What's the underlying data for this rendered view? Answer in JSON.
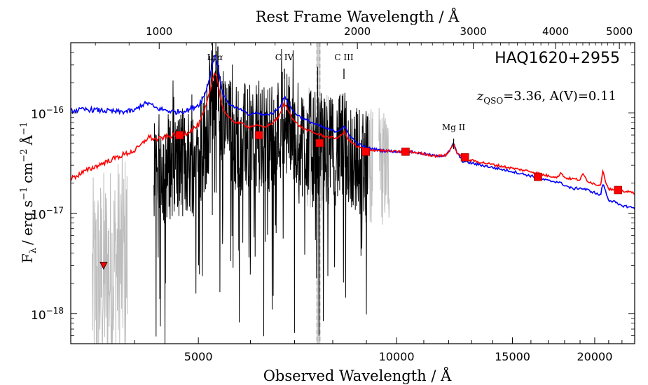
{
  "chart_data": {
    "type": "line",
    "title": "",
    "object_label": "HAQ1620+2955",
    "redshift_label": {
      "z_symbol": "z",
      "z_subscript": "QSO",
      "text": "=3.36, A(V)=0.11"
    },
    "xlabel_bottom": "Observed Wavelength / Å",
    "xlabel_top": "Rest Frame Wavelength / Å",
    "ylabel": {
      "F": "F",
      "F_sub": "λ",
      "units": "/ erg s",
      "s_exp": "−1",
      "cm": "cm",
      "cm_exp": "−2",
      "A": "Å",
      "A_exp": "−1"
    },
    "x_scale": "log",
    "xlim": [
      3200,
      23000
    ],
    "y_scale": "log",
    "ylim": [
      5e-19,
      5e-16
    ],
    "z": 3.36,
    "x_ticks_bottom": [
      {
        "value": 5000,
        "label": "5000"
      },
      {
        "value": 10000,
        "label": "10000"
      },
      {
        "value": 15000,
        "label": "15000"
      },
      {
        "value": 20000,
        "label": "20000"
      }
    ],
    "x_ticks_top_rest": [
      {
        "value": 1000,
        "label": "1000"
      },
      {
        "value": 2000,
        "label": "2000"
      },
      {
        "value": 3000,
        "label": "3000"
      },
      {
        "value": 4000,
        "label": "4000"
      },
      {
        "value": 5000,
        "label": "5000"
      }
    ],
    "y_ticks": [
      {
        "value": 1e-16,
        "base": "10",
        "exp": "−16"
      },
      {
        "value": 1e-17,
        "base": "10",
        "exp": "−17"
      },
      {
        "value": 1e-18,
        "base": "10",
        "exp": "−18"
      }
    ],
    "emission_lines": [
      {
        "name": "Lyα",
        "label_main": "Ly",
        "label_greek": "α",
        "obs_wavelength": 5300,
        "tick": false
      },
      {
        "name": "C IV",
        "label_main": "C IV",
        "label_greek": "",
        "obs_wavelength": 6755,
        "tick": true
      },
      {
        "name": "C III",
        "label_main": "C III",
        "label_greek": "",
        "obs_wavelength": 8320,
        "tick": true
      },
      {
        "name": "Mg II",
        "label_main": "Mg II",
        "label_greek": "",
        "obs_wavelength": 12210,
        "tick": true
      }
    ],
    "shaded_band": {
      "x_from": 7560,
      "x_to": 7660,
      "color": "#cfcfcf"
    },
    "dashed_lines_x": [
      7570,
      7650
    ],
    "photometry_points": {
      "marker": "square",
      "color": "#ff0000",
      "x": [
        4680,
        6180,
        7640,
        8980,
        10320,
        12700,
        16400,
        21700
      ],
      "y": [
        6e-17,
        6e-17,
        5e-17,
        4.1e-17,
        4.1e-17,
        3.6e-17,
        2.3e-17,
        1.7e-17
      ]
    },
    "upper_limit": {
      "marker": "triangle-down",
      "color": "#ff0000",
      "x": 3590,
      "y": 3e-18
    },
    "series": [
      {
        "color": "#0000ff",
        "kind": "model",
        "x": [
          3200,
          3400,
          3600,
          3800,
          4000,
          4100,
          4200,
          4300,
          4400,
          4600,
          4800,
          5000,
          5100,
          5200,
          5250,
          5300,
          5350,
          5400,
          5450,
          5550,
          5700,
          5850,
          5950,
          6100,
          6300,
          6500,
          6650,
          6750,
          6850,
          7000,
          7200,
          7500,
          7800,
          8100,
          8250,
          8320,
          8450,
          8700,
          9000,
          9500,
          10000,
          10500,
          11000,
          11500,
          11900,
          12100,
          12210,
          12350,
          12600,
          13000,
          14000,
          15000,
          16000,
          17000,
          17600,
          18000,
          18500,
          19000,
          19500,
          20000,
          20400,
          20600,
          20800,
          21000,
          21400,
          21800,
          22200,
          22600,
          23000
        ],
        "y": [
          1.05e-16,
          1.08e-16,
          1.05e-16,
          1.02e-16,
          1.05e-16,
          1.2e-16,
          1.25e-16,
          1.12e-16,
          1.08e-16,
          1.02e-16,
          1.05e-16,
          1.2e-16,
          1.45e-16,
          2.2e-16,
          3e-16,
          3.9e-16,
          3e-16,
          2e-16,
          1.55e-16,
          1.25e-16,
          1.12e-16,
          1.05e-16,
          9.5e-17,
          1e-16,
          9.5e-17,
          1e-16,
          1.15e-16,
          1.45e-16,
          1.25e-16,
          1e-16,
          8.8e-17,
          7.8e-17,
          7e-17,
          6.5e-17,
          7e-17,
          7.4e-17,
          6.2e-17,
          5e-17,
          4.5e-17,
          4.2e-17,
          4.1e-17,
          4.1e-17,
          3.9e-17,
          3.7e-17,
          3.8e-17,
          4.4e-17,
          5e-17,
          4e-17,
          3.3e-17,
          3.15e-17,
          2.85e-17,
          2.6e-17,
          2.35e-17,
          2.1e-17,
          2.05e-17,
          1.9e-17,
          1.75e-17,
          1.78e-17,
          1.7e-17,
          1.6e-17,
          1.5e-17,
          2e-17,
          1.6e-17,
          1.35e-17,
          1.3e-17,
          1.2e-17,
          1.18e-17,
          1.15e-17,
          1.12e-17
        ]
      },
      {
        "color": "#ff0000",
        "kind": "model",
        "x": [
          3200,
          3400,
          3600,
          3800,
          4000,
          4100,
          4200,
          4300,
          4400,
          4600,
          4800,
          5000,
          5100,
          5200,
          5250,
          5300,
          5350,
          5400,
          5450,
          5550,
          5700,
          5850,
          5950,
          6100,
          6300,
          6500,
          6650,
          6750,
          6850,
          7000,
          7200,
          7500,
          7800,
          8100,
          8250,
          8320,
          8450,
          8700,
          9000,
          9500,
          10000,
          10500,
          11000,
          11500,
          11900,
          12100,
          12210,
          12350,
          12600,
          13000,
          14000,
          15000,
          16000,
          17000,
          17600,
          17800,
          18000,
          18500,
          19000,
          19200,
          19500,
          20000,
          20400,
          20600,
          20800,
          21000,
          21400,
          21800,
          22200,
          22600,
          23000
        ],
        "y": [
          2.2e-17,
          2.7e-17,
          3.2e-17,
          3.7e-17,
          4.2e-17,
          4.8e-17,
          5.8e-17,
          5.4e-17,
          5.6e-17,
          6e-17,
          6.3e-17,
          7.5e-17,
          1e-16,
          1.55e-16,
          2.1e-16,
          2.6e-16,
          2.1e-16,
          1.4e-16,
          1.1e-16,
          9e-17,
          8e-17,
          7.8e-17,
          7.2e-17,
          7.5e-17,
          7.2e-17,
          8e-17,
          9.5e-17,
          1.25e-16,
          1.05e-16,
          8.2e-17,
          7e-17,
          6.3e-17,
          5.8e-17,
          5.6e-17,
          6e-17,
          6.5e-17,
          5.4e-17,
          4.6e-17,
          4.3e-17,
          4.2e-17,
          4.1e-17,
          4.1e-17,
          3.9e-17,
          3.7e-17,
          3.8e-17,
          4.4e-17,
          5e-17,
          4e-17,
          3.5e-17,
          3.35e-17,
          3.05e-17,
          2.8e-17,
          2.6e-17,
          2.35e-17,
          2.3e-17,
          2.55e-17,
          2.25e-17,
          2.2e-17,
          2.15e-17,
          2.45e-17,
          2.1e-17,
          1.95e-17,
          1.9e-17,
          2.7e-17,
          2e-17,
          1.75e-17,
          1.7e-17,
          1.7e-17,
          1.65e-17,
          1.62e-17,
          1.6e-17
        ]
      }
    ],
    "observed_spectrum": {
      "color": "#000000",
      "x_range": [
        4280,
        9050
      ],
      "description_free": true
    },
    "low_snr_spectrum": {
      "color": "#bdbdbd",
      "x_ranges": [
        [
          3450,
          3900
        ],
        [
          7300,
          7900
        ],
        [
          8900,
          9200
        ],
        [
          9400,
          9750
        ]
      ]
    }
  }
}
